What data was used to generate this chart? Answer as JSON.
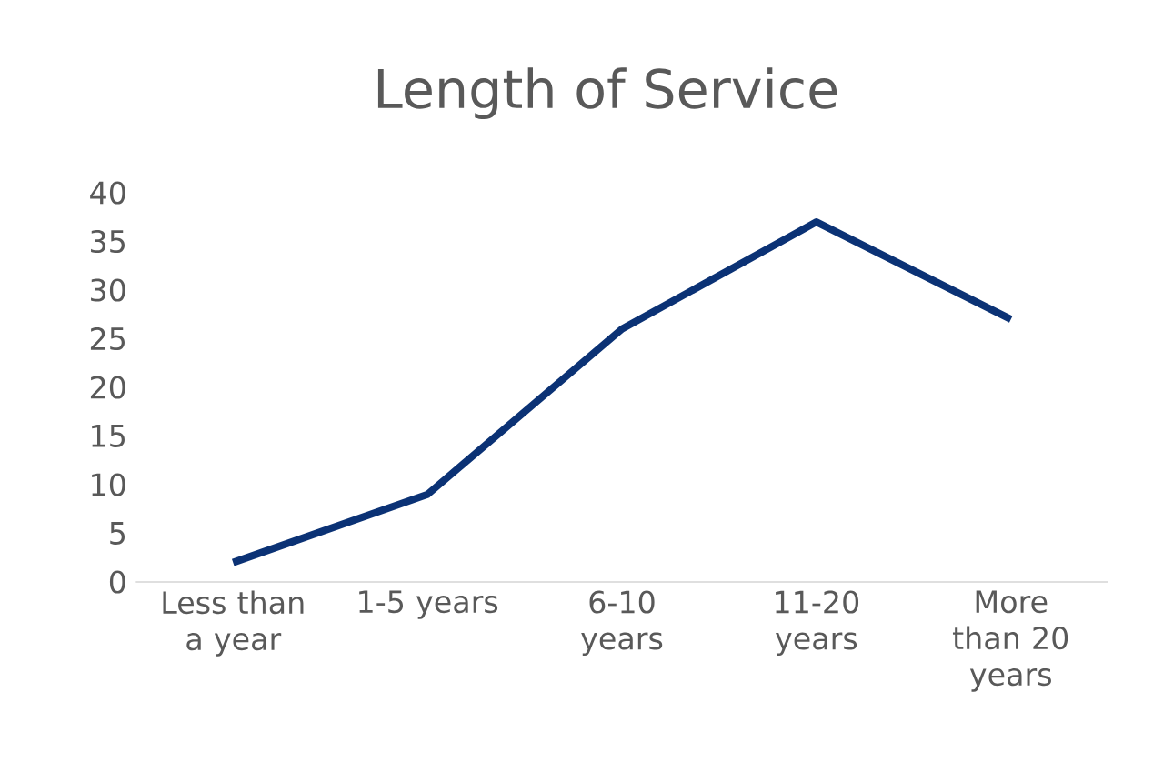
{
  "chart_data": {
    "type": "line",
    "title": "Length of Service",
    "categories": [
      "Less than a year",
      "1-5 years",
      "6-10 years",
      "11-20 years",
      "More than 20 years"
    ],
    "values": [
      2,
      9,
      26,
      37,
      27
    ],
    "color": "#0b3275",
    "ylim": [
      0,
      40
    ],
    "yticks": [
      0,
      5,
      10,
      15,
      20,
      25,
      30,
      35,
      40
    ]
  }
}
